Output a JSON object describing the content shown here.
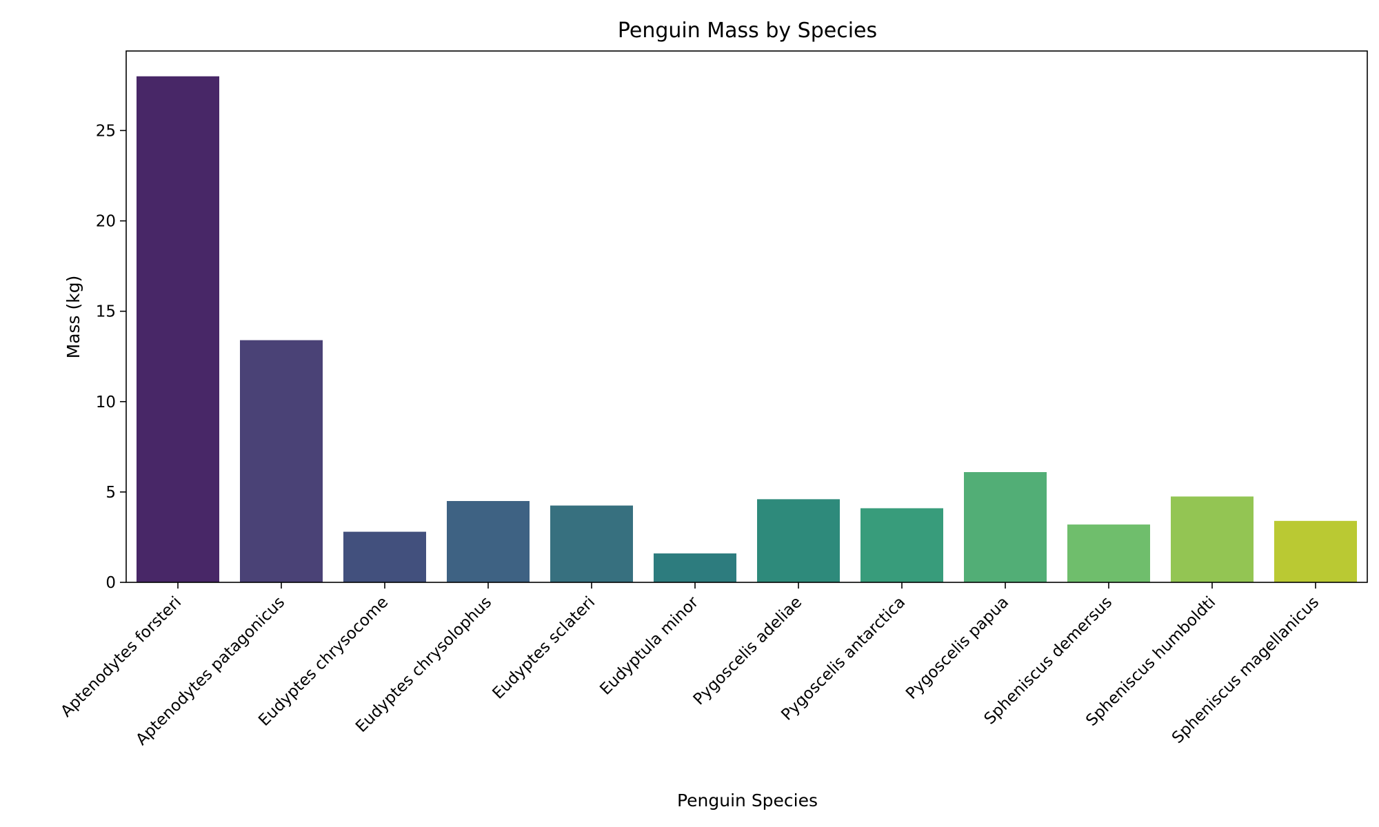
{
  "chart_data": {
    "type": "bar",
    "title": "Penguin Mass by Species",
    "xlabel": "Penguin Species",
    "ylabel": "Mass (kg)",
    "ylim": [
      0,
      29.4
    ],
    "yticks": [
      0,
      5,
      10,
      15,
      20,
      25
    ],
    "grid": false,
    "legend": "none",
    "categories": [
      "Aptenodytes forsteri",
      "Aptenodytes patagonicus",
      "Eudyptes chrysocome",
      "Eudyptes chrysolophus",
      "Eudyptes sclateri",
      "Eudyptula minor",
      "Pygoscelis adeliae",
      "Pygoscelis antarctica",
      "Pygoscelis papua",
      "Spheniscus demersus",
      "Spheniscus humboldti",
      "Spheniscus magellanicus"
    ],
    "values": [
      28.0,
      13.4,
      2.8,
      4.5,
      4.25,
      1.6,
      4.6,
      4.1,
      6.1,
      3.2,
      4.75,
      3.4
    ],
    "colors": [
      "#482767",
      "#4a4276",
      "#42507d",
      "#3e6283",
      "#37707f",
      "#2d7c7e",
      "#2e8a7b",
      "#389c7b",
      "#52ae76",
      "#6fbe6c",
      "#93c553",
      "#bac933"
    ]
  }
}
